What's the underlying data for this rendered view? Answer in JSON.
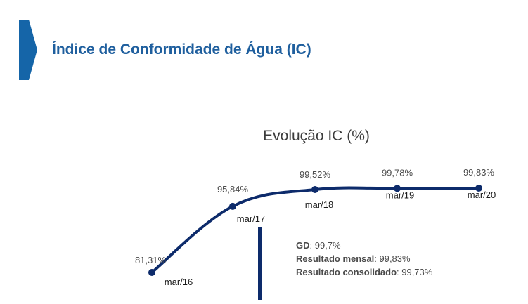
{
  "header": {
    "title": "Índice de Conformidade de Água (IC)",
    "accent_color": "#1f5f9e",
    "marker_color": "#1565a8"
  },
  "chart_data": {
    "type": "line",
    "title": "Evolução IC (%)",
    "xlabel": "",
    "ylabel": "",
    "categories": [
      "mar/16",
      "mar/17",
      "mar/18",
      "mar/19",
      "mar/20"
    ],
    "values": [
      81.31,
      95.84,
      99.52,
      99.78,
      99.83
    ],
    "value_labels": [
      "81,31%",
      "95,84%",
      "99,52%",
      "99,78%",
      "99,83%"
    ],
    "series_color": "#0d2b6b",
    "grid": false,
    "legend": "none"
  },
  "summary": {
    "gd_key": "GD",
    "gd_value": ": 99,7%",
    "monthly_key": "Resultado mensal",
    "monthly_value": ": 99,83%",
    "consolidated_key": "Resultado consolidado",
    "consolidated_value": ": 99,73%"
  }
}
